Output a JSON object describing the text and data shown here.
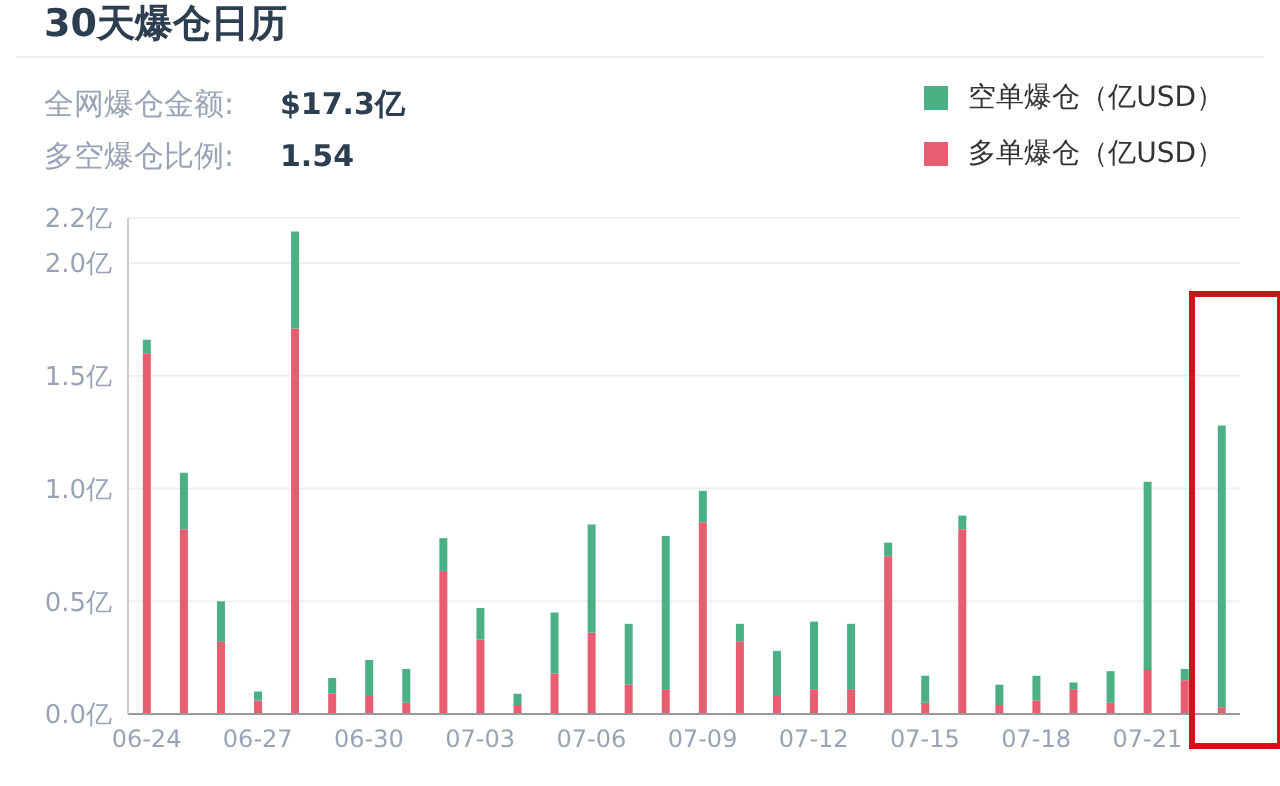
{
  "chart_data": {
    "type": "bar",
    "title": "30天爆仓日历",
    "annotations": [
      "全网爆仓金额:",
      "$17.3亿",
      "多空爆仓比例:",
      "1.54"
    ],
    "categories": [
      "06-24",
      null,
      null,
      "06-27",
      null,
      null,
      "06-30",
      null,
      null,
      "07-03",
      null,
      null,
      "07-06",
      null,
      null,
      "07-09",
      null,
      null,
      "07-12",
      null,
      null,
      "07-15",
      null,
      null,
      "07-18",
      null,
      null,
      "07-21",
      null,
      null
    ],
    "stacked": true,
    "series": [
      {
        "name": "多单爆仓（亿USD）",
        "color": "#e85d6f",
        "values": [
          1.6,
          0.82,
          0.32,
          0.06,
          1.71,
          0.09,
          0.08,
          0.05,
          0.63,
          0.33,
          0.04,
          0.18,
          0.36,
          0.13,
          0.11,
          0.85,
          0.32,
          0.08,
          0.11,
          0.11,
          0.7,
          0.05,
          0.82,
          0.04,
          0.06,
          0.11,
          0.05,
          0.2,
          0.15,
          0.03
        ]
      },
      {
        "name": "空单爆仓（亿USD）",
        "color": "#4cb087",
        "values": [
          0.06,
          0.25,
          0.18,
          0.04,
          0.43,
          0.07,
          0.16,
          0.15,
          0.15,
          0.14,
          0.05,
          0.27,
          0.48,
          0.27,
          0.68,
          0.14,
          0.08,
          0.2,
          0.3,
          0.29,
          0.06,
          0.12,
          0.06,
          0.09,
          0.11,
          0.03,
          0.14,
          0.83,
          0.05,
          1.25
        ]
      }
    ],
    "ylim": [
      0,
      2.2
    ],
    "yticks": [
      {
        "value": 0,
        "label": "0.0亿"
      },
      {
        "value": 0.5,
        "label": "0.5亿"
      },
      {
        "value": 1,
        "label": "1.0亿"
      },
      {
        "value": 1.5,
        "label": "1.5亿"
      },
      {
        "value": 2,
        "label": "2.0亿"
      },
      {
        "value": 2.2,
        "label": "2.2亿"
      }
    ],
    "grid": "y",
    "legend": "top right"
  }
}
